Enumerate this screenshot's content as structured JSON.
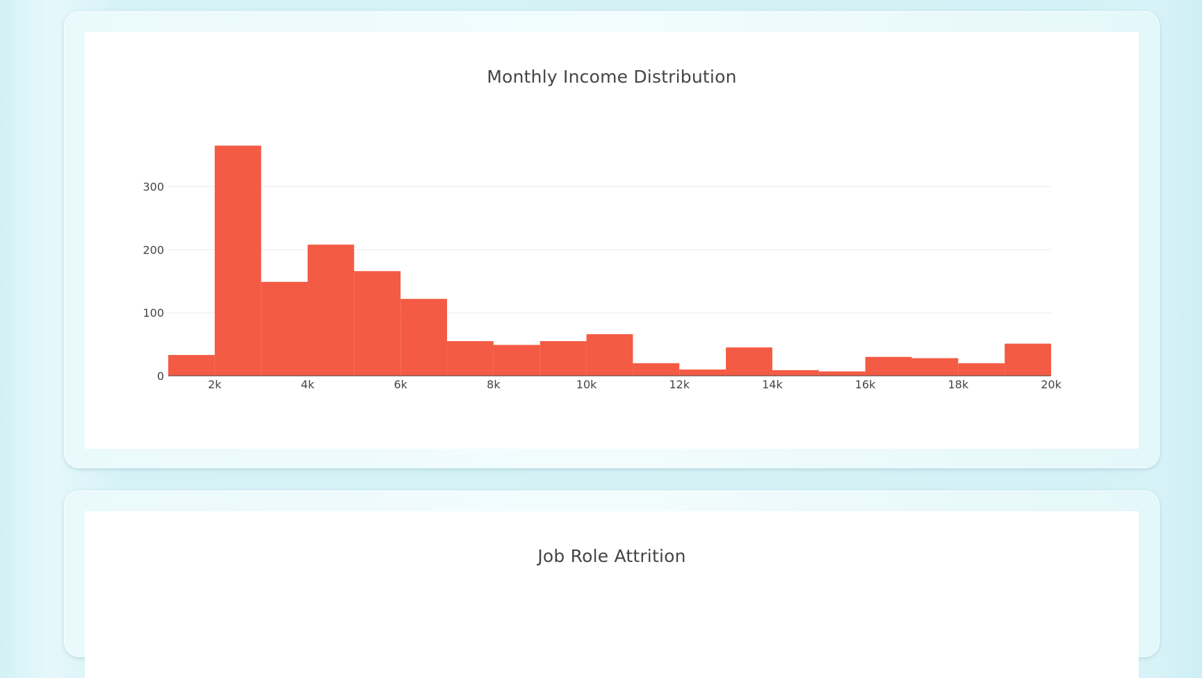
{
  "charts": {
    "income": {
      "title": "Monthly Income Distribution"
    },
    "jobrole": {
      "title": "Job Role Attrition"
    }
  },
  "chart_data": [
    {
      "type": "bar",
      "title": "Monthly Income Distribution",
      "xlabel": "",
      "ylabel": "",
      "bin_width": 1000,
      "bins": [
        {
          "x0": 1000,
          "x1": 2000,
          "count": 33
        },
        {
          "x0": 2000,
          "x1": 3000,
          "count": 365
        },
        {
          "x0": 3000,
          "x1": 4000,
          "count": 149
        },
        {
          "x0": 4000,
          "x1": 5000,
          "count": 208
        },
        {
          "x0": 5000,
          "x1": 6000,
          "count": 166
        },
        {
          "x0": 6000,
          "x1": 7000,
          "count": 122
        },
        {
          "x0": 7000,
          "x1": 8000,
          "count": 55
        },
        {
          "x0": 8000,
          "x1": 9000,
          "count": 49
        },
        {
          "x0": 9000,
          "x1": 10000,
          "count": 55
        },
        {
          "x0": 10000,
          "x1": 11000,
          "count": 66
        },
        {
          "x0": 11000,
          "x1": 12000,
          "count": 20
        },
        {
          "x0": 12000,
          "x1": 13000,
          "count": 10
        },
        {
          "x0": 13000,
          "x1": 14000,
          "count": 45
        },
        {
          "x0": 14000,
          "x1": 15000,
          "count": 9
        },
        {
          "x0": 15000,
          "x1": 16000,
          "count": 7
        },
        {
          "x0": 16000,
          "x1": 17000,
          "count": 30
        },
        {
          "x0": 17000,
          "x1": 18000,
          "count": 28
        },
        {
          "x0": 18000,
          "x1": 19000,
          "count": 20
        },
        {
          "x0": 19000,
          "x1": 20000,
          "count": 51
        }
      ],
      "xlim": [
        1000,
        20000
      ],
      "ylim": [
        0,
        380
      ],
      "x_ticks": [
        {
          "value": 2000,
          "label": "2k"
        },
        {
          "value": 4000,
          "label": "4k"
        },
        {
          "value": 6000,
          "label": "6k"
        },
        {
          "value": 8000,
          "label": "8k"
        },
        {
          "value": 10000,
          "label": "10k"
        },
        {
          "value": 12000,
          "label": "12k"
        },
        {
          "value": 14000,
          "label": "14k"
        },
        {
          "value": 16000,
          "label": "16k"
        },
        {
          "value": 18000,
          "label": "18k"
        },
        {
          "value": 20000,
          "label": "20k"
        }
      ],
      "y_ticks": [
        {
          "value": 0,
          "label": "0"
        },
        {
          "value": 100,
          "label": "100"
        },
        {
          "value": 200,
          "label": "200"
        },
        {
          "value": 300,
          "label": "300"
        }
      ],
      "grid": true,
      "bar_color": "#f45b44",
      "grid_color": "#ececec"
    },
    {
      "type": "bar",
      "title": "Job Role Attrition"
    }
  ]
}
